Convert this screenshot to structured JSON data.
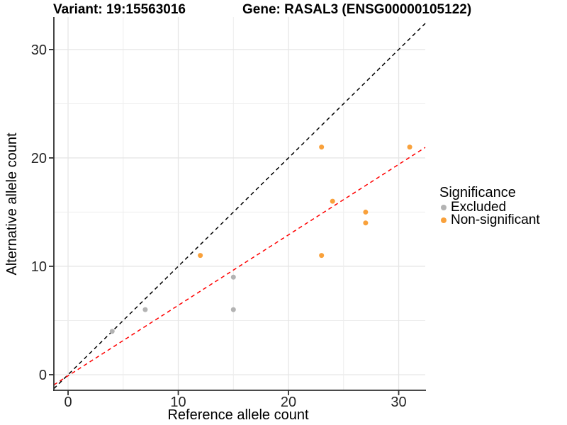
{
  "titles": {
    "variant": "Variant: 19:15563016",
    "gene": "Gene: RASAL3 (ENSG00000105122)"
  },
  "chart_data": {
    "type": "scatter",
    "xlabel": "Reference allele count",
    "ylabel": "Alternative allele count",
    "xlim": [
      -1.29,
      32.41
    ],
    "ylim": [
      -1.44,
      33.0
    ],
    "x_ticks": [
      0,
      10,
      20,
      30
    ],
    "y_ticks": [
      0,
      10,
      20,
      30
    ],
    "grid": true,
    "grid_step": 5,
    "series": [
      {
        "name": "Excluded",
        "color": "#B3B3B3",
        "points": [
          [
            4,
            4
          ],
          [
            7,
            6
          ],
          [
            15,
            6
          ],
          [
            15,
            9
          ]
        ]
      },
      {
        "name": "Non-significant",
        "color": "#F9A13B",
        "points": [
          [
            12,
            11
          ],
          [
            23,
            11
          ],
          [
            24,
            16
          ],
          [
            27,
            14
          ],
          [
            27,
            15
          ],
          [
            23,
            21
          ],
          [
            31,
            21
          ]
        ]
      }
    ],
    "lines": [
      {
        "name": "identity",
        "color": "#000000",
        "style": "dashed",
        "slope": 1,
        "intercept": 0
      },
      {
        "name": "fit",
        "color": "#FF0000",
        "style": "dashed",
        "slope": 0.65,
        "intercept": -0.1
      }
    ],
    "legend": {
      "title": "Significance",
      "position": "right",
      "items": [
        {
          "label": "Excluded",
          "color": "#B3B3B3"
        },
        {
          "label": "Non-significant",
          "color": "#F9A13B"
        }
      ]
    }
  }
}
